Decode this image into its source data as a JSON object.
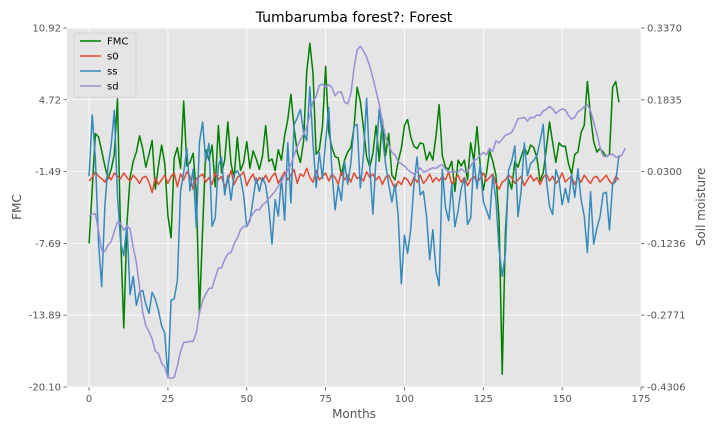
{
  "chart_data": {
    "type": "line",
    "title": "Tumbarumba forest?: Forest",
    "xlabel": "Months",
    "ylabel": "FMC",
    "ylabel_right": "Soil moisture",
    "xlim": [
      -7,
      175
    ],
    "ylim": [
      -20.1,
      10.92
    ],
    "ylim_right": [
      -0.4306,
      0.337
    ],
    "xticks": [
      "0",
      "25",
      "50",
      "75",
      "100",
      "125",
      "150",
      "175"
    ],
    "yticks_left": [
      "-20.10",
      "-13.89",
      "-7.69",
      "-1.49",
      "4.72",
      "10.92"
    ],
    "yticks_right": [
      "-0.4306",
      "-0.2771",
      "-0.1236",
      "0.0300",
      "0.1835",
      "0.3370"
    ],
    "grid": true,
    "legend_position": "top-left",
    "colors": {
      "FMC": "#008000",
      "s0": "#e24a33",
      "ss": "#348abd",
      "sd": "#988ed5",
      "background": "#e5e5e5",
      "grid": "#ffffff"
    },
    "series": [
      {
        "name": "FMC",
        "axis": "left",
        "values": [
          -7.7,
          -3.0,
          1.8,
          1.5,
          0.3,
          -1.0,
          -2.1,
          -1.3,
          0.0,
          4.8,
          -7.0,
          -15.0,
          -6.0,
          -2.0,
          -0.6,
          0.2,
          1.6,
          0.5,
          -1.1,
          0.0,
          1.2,
          -3.0,
          -1.0,
          0.8,
          -0.8,
          -5.3,
          -7.2,
          -0.3,
          0.6,
          -1.2,
          4.6,
          -1.0,
          -0.7,
          0.1,
          -3.3,
          -13.7,
          -6.5,
          0.4,
          -0.5,
          0.8,
          -2.8,
          2.5,
          -1.6,
          -0.5,
          2.8,
          -0.8,
          -2.0,
          1.5,
          -1.4,
          -0.7,
          1.1,
          -1.2,
          0.3,
          -0.4,
          -1.3,
          -0.1,
          2.5,
          -0.6,
          -0.4,
          -1.4,
          0.4,
          -0.5,
          1.6,
          3.0,
          5.2,
          2.3,
          0.2,
          -0.7,
          1.1,
          7.1,
          9.6,
          7.0,
          0.0,
          0.4,
          2.4,
          7.6,
          1.9,
          0.6,
          -0.2,
          -0.3,
          -1.8,
          -0.5,
          0.2,
          0.6,
          2.3,
          5.8,
          4.6,
          2.3,
          -0.2,
          -1.1,
          0.1,
          2.5,
          -0.6,
          3.0,
          -0.1,
          1.8,
          -1.8,
          -2.2,
          -0.6,
          0.5,
          2.5,
          3.0,
          1.5,
          0.7,
          0.5,
          1.0,
          0.9,
          -0.5,
          0.2,
          -0.5,
          1.6,
          4.3,
          -0.1,
          -1.1,
          -1.3,
          -0.6,
          -3.2,
          -0.5,
          -1.0,
          -0.5,
          -2.2,
          1.0,
          -0.6,
          2.4,
          -0.9,
          -3.1,
          -1.6,
          0.3,
          -0.6,
          -1.8,
          -5.6,
          -19.0,
          -6.8,
          -2.1,
          -3.0,
          -0.6,
          -1.1,
          -0.2,
          0.6,
          0.0,
          0.8,
          0.6,
          -0.3,
          -2.3,
          -1.6,
          0.5,
          2.8,
          1.0,
          -0.7,
          1.0,
          0.7,
          0.7,
          -0.8,
          -1.7,
          0.0,
          0.2,
          1.9,
          2.5,
          6.3,
          3.3,
          1.1,
          0.2,
          0.5,
          0.2,
          -0.2,
          0.0,
          5.8,
          6.3,
          4.5
        ]
      },
      {
        "name": "s0",
        "axis": "left",
        "values": [
          -2.3,
          -2.0,
          -1.5,
          -1.9,
          -2.1,
          -2.4,
          -1.8,
          -2.2,
          -1.6,
          -1.9,
          -2.1,
          -1.6,
          -2.0,
          -2.3,
          -1.8,
          -2.1,
          -2.5,
          -2.0,
          -1.9,
          -2.4,
          -3.3,
          -2.0,
          -2.6,
          -2.2,
          -1.8,
          -2.5,
          -1.9,
          -1.6,
          -2.8,
          -1.7,
          -2.2,
          -1.5,
          -1.9,
          -3.0,
          -2.1,
          -1.9,
          -1.7,
          -2.4,
          -2.0,
          -2.6,
          -1.6,
          -2.2,
          -1.9,
          -2.8,
          -2.3,
          -1.4,
          -2.6,
          -2.0,
          -1.8,
          -1.5,
          -2.7,
          -2.1,
          -1.7,
          -2.5,
          -2.0,
          -2.3,
          -1.8,
          -2.4,
          -1.9,
          -1.6,
          -2.5,
          -2.0,
          -1.5,
          -2.2,
          -1.8,
          -1.3,
          -2.5,
          -1.7,
          -1.9,
          -1.2,
          -2.0,
          -2.4,
          -1.4,
          -2.2,
          -1.9,
          -1.6,
          -2.3,
          -1.7,
          -2.0,
          -2.6,
          -1.5,
          -2.2,
          -1.8,
          -2.4,
          -1.6,
          -2.1,
          -1.9,
          -2.3,
          -1.5,
          -2.0,
          -1.7,
          -2.2,
          -1.9,
          -2.6,
          -2.0,
          -1.8,
          -2.4,
          -3.0,
          -2.3,
          -2.6,
          -2.0,
          -2.2,
          -2.7,
          -2.0,
          -2.4,
          -1.8,
          -2.5,
          -2.2,
          -1.7,
          -2.4,
          -2.0,
          -2.3,
          -1.9,
          -2.2,
          -1.5,
          -2.6,
          -2.1,
          -1.8,
          -2.4,
          -2.0,
          -2.7,
          -2.2,
          -1.9,
          -2.4,
          -2.1,
          -1.6,
          -2.3,
          -2.0,
          -1.7,
          -2.5,
          -3.0,
          -2.4,
          -2.2,
          -1.8,
          -2.0,
          -2.5,
          -2.2,
          -1.9,
          -2.7,
          -2.2,
          -1.8,
          -2.3,
          -2.0,
          -2.6,
          -2.0,
          -1.7,
          -2.3,
          -1.9,
          -2.5,
          -2.2,
          -1.6,
          -2.4,
          -2.1,
          -1.9,
          -2.6,
          -2.0,
          -2.4,
          -1.8,
          -2.2,
          -2.5,
          -2.0,
          -1.9,
          -2.4,
          -2.1,
          -1.8,
          -2.3,
          -2.6,
          -1.9,
          -2.2
        ]
      },
      {
        "name": "ss",
        "axis": "right",
        "values": [
          0.02,
          0.151,
          0.058,
          -0.122,
          -0.216,
          -0.044,
          0.042,
          0.085,
          0.161,
          -0.02,
          -0.122,
          -0.15,
          -0.083,
          -0.233,
          -0.194,
          -0.256,
          -0.228,
          -0.224,
          -0.254,
          -0.273,
          -0.228,
          -0.243,
          -0.267,
          -0.3,
          -0.315,
          -0.411,
          -0.245,
          -0.242,
          -0.203,
          -0.012,
          0.028,
          0.079,
          -0.011,
          0.035,
          -0.089,
          0.093,
          0.136,
          0.052,
          0.09,
          -0.087,
          -0.069,
          0.044,
          0.06,
          -0.02,
          0.022,
          -0.031,
          0.024,
          0.032,
          0.018,
          -0.02,
          -0.088,
          -0.075,
          -0.029,
          0.016,
          -0.012,
          0.017,
          0.001,
          -0.047,
          -0.125,
          -0.03,
          -0.065,
          0.017,
          -0.074,
          0.092,
          -0.037,
          0.13,
          0.145,
          0.163,
          0.115,
          0.096,
          0.211,
          0.091,
          -0.004,
          0.071,
          0.015,
          0.094,
          0.167,
          0.031,
          -0.052,
          0.001,
          -0.032,
          0.051,
          0.003,
          0.048,
          0.127,
          0.131,
          -0.005,
          0.064,
          0.187,
          0.039,
          -0.061,
          0.06,
          0.164,
          0.108,
          0.047,
          0.003,
          -0.035,
          0.003,
          -0.063,
          -0.21,
          -0.106,
          -0.145,
          -0.093,
          0.002,
          0.061,
          -0.02,
          -0.012,
          -0.065,
          -0.158,
          -0.094,
          -0.183,
          -0.214,
          0.035,
          -0.046,
          -0.075,
          0.003,
          -0.088,
          -0.054,
          -0.006,
          0.015,
          -0.083,
          -0.069,
          0.057,
          -0.006,
          0.045,
          -0.034,
          -0.053,
          -0.072,
          0.022,
          -0.03,
          -0.137,
          -0.194,
          -0.145,
          0.033,
          0.052,
          0.085,
          -0.066,
          -0.012,
          0.091,
          0.021,
          0.047,
          0.054,
          0.064,
          0.095,
          0.131,
          0.012,
          -0.045,
          -0.062,
          0.034,
          0.013,
          -0.041,
          -0.006,
          -0.036,
          0.024,
          -0.025,
          0.036,
          -0.03,
          -0.065,
          -0.143,
          -0.013,
          -0.125,
          -0.091,
          -0.067,
          -0.017,
          -0.014,
          -0.095,
          0.003,
          0.009,
          0.065
        ]
      },
      {
        "name": "sd",
        "axis": "right",
        "values": [
          -0.065,
          -0.061,
          -0.06,
          -0.097,
          -0.139,
          -0.141,
          -0.127,
          -0.12,
          -0.098,
          -0.078,
          -0.081,
          -0.096,
          -0.086,
          -0.093,
          -0.132,
          -0.165,
          -0.217,
          -0.27,
          -0.3,
          -0.312,
          -0.328,
          -0.354,
          -0.359,
          -0.38,
          -0.388,
          -0.41,
          -0.412,
          -0.41,
          -0.385,
          -0.355,
          -0.335,
          -0.335,
          -0.333,
          -0.333,
          -0.314,
          -0.272,
          -0.246,
          -0.232,
          -0.22,
          -0.219,
          -0.197,
          -0.176,
          -0.176,
          -0.158,
          -0.146,
          -0.143,
          -0.124,
          -0.112,
          -0.095,
          -0.087,
          -0.088,
          -0.07,
          -0.06,
          -0.051,
          -0.052,
          -0.041,
          -0.036,
          -0.027,
          -0.02,
          -0.012,
          -0.001,
          0.007,
          0.023,
          0.033,
          0.045,
          0.065,
          0.084,
          0.098,
          0.11,
          0.126,
          0.15,
          0.18,
          0.191,
          0.214,
          0.217,
          0.21,
          0.216,
          0.21,
          0.192,
          0.2,
          0.2,
          0.178,
          0.175,
          0.196,
          0.251,
          0.29,
          0.298,
          0.288,
          0.275,
          0.255,
          0.23,
          0.202,
          0.174,
          0.136,
          0.105,
          0.086,
          0.071,
          0.066,
          0.051,
          0.047,
          0.042,
          0.034,
          0.029,
          0.025,
          0.029,
          0.038,
          0.029,
          0.031,
          0.035,
          0.038,
          0.037,
          0.042,
          0.045,
          0.035,
          0.029,
          0.029,
          0.03,
          0.029,
          0.036,
          0.03,
          0.029,
          0.042,
          0.052,
          0.057,
          0.065,
          0.071,
          0.066,
          0.08,
          0.073,
          0.096,
          0.091,
          0.099,
          0.108,
          0.11,
          0.114,
          0.127,
          0.143,
          0.144,
          0.146,
          0.138,
          0.146,
          0.145,
          0.151,
          0.15,
          0.16,
          0.163,
          0.169,
          0.164,
          0.154,
          0.16,
          0.164,
          0.162,
          0.15,
          0.142,
          0.146,
          0.158,
          0.162,
          0.169,
          0.173,
          0.16,
          0.136,
          0.111,
          0.082,
          0.063,
          0.062,
          0.066,
          0.067,
          0.061,
          0.06,
          0.066,
          0.08
        ]
      }
    ]
  }
}
